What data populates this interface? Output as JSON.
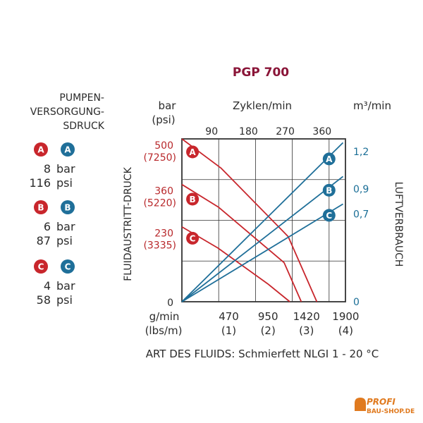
{
  "title": "PGP 700",
  "left_panel": {
    "heading": [
      "PUMPEN-",
      "VERSORGUNG-",
      "SDRUCK"
    ],
    "groups": [
      {
        "letter": "A",
        "bar": "8",
        "psi": "116"
      },
      {
        "letter": "B",
        "bar": "6",
        "psi": "87"
      },
      {
        "letter": "C",
        "bar": "4",
        "psi": "58"
      }
    ],
    "unit_bar": "bar",
    "unit_psi": "psi"
  },
  "logo": {
    "line1": "PROFI",
    "line2": "BAU-SHOP.DE"
  },
  "colors": {
    "red": "#c8262c",
    "blue": "#1f6f99",
    "title": "#8a1538",
    "grid": "#333333",
    "text": "#2b2b2b"
  },
  "chart_data": {
    "type": "line",
    "title": "PGP 700",
    "footer_label": "ART DES FLUIDS: Schmierfett NLGI 1 - 20 °C",
    "left_axis": {
      "label": "FLUIDAUSTRITT-DRUCK",
      "unit_lines": [
        "bar",
        "(psi)"
      ],
      "range": [
        0,
        500
      ],
      "ticks": [
        {
          "value": 500,
          "bar": "500",
          "psi": "(7250)"
        },
        {
          "value": 360,
          "bar": "360",
          "psi": "(5220)"
        },
        {
          "value": 230,
          "bar": "230",
          "psi": "(3335)"
        },
        {
          "value": 0,
          "bar": "0",
          "psi": ""
        }
      ]
    },
    "right_axis": {
      "label": "LUFTVERBRAUCH",
      "unit": "m³/min",
      "range": [
        0,
        1.3
      ],
      "ticks": [
        {
          "value": 1.2,
          "label": "1,2"
        },
        {
          "value": 0.9,
          "label": "0,9"
        },
        {
          "value": 0.7,
          "label": "0,7"
        },
        {
          "value": 0,
          "label": "0"
        }
      ]
    },
    "top_axis": {
      "label": "Zyklen/min",
      "range": [
        0,
        400
      ],
      "ticks": [
        "90",
        "180",
        "270",
        "360"
      ],
      "tick_values": [
        90,
        180,
        270,
        360
      ]
    },
    "bottom_axis": {
      "unit_lines": [
        "g/min",
        "(lbs/m)"
      ],
      "range": [
        0,
        2000
      ],
      "ticks": [
        {
          "value": 470,
          "label": "470",
          "sub": "(1)"
        },
        {
          "value": 950,
          "label": "950",
          "sub": "(2)"
        },
        {
          "value": 1420,
          "label": "1420",
          "sub": "(3)"
        },
        {
          "value": 1900,
          "label": "1900",
          "sub": "(4)"
        }
      ]
    },
    "pressure_series": [
      {
        "name": "A",
        "axis": "left",
        "x": [
          0,
          480,
          1300,
          1650
        ],
        "y": [
          500,
          410,
          200,
          0
        ],
        "label_at": [
          130,
          460
        ]
      },
      {
        "name": "B",
        "axis": "left",
        "x": [
          0,
          450,
          1250,
          1460
        ],
        "y": [
          360,
          290,
          120,
          0
        ],
        "label_at": [
          130,
          315
        ]
      },
      {
        "name": "C",
        "axis": "left",
        "x": [
          0,
          440,
          1050,
          1320
        ],
        "y": [
          230,
          165,
          55,
          0
        ],
        "label_at": [
          130,
          195
        ]
      }
    ],
    "air_series": [
      {
        "name": "A",
        "axis": "right",
        "x": [
          0,
          1970
        ],
        "y": [
          0,
          1.27
        ],
        "label_at": [
          1800,
          1.14
        ]
      },
      {
        "name": "B",
        "axis": "right",
        "x": [
          0,
          1970
        ],
        "y": [
          0,
          1.0
        ],
        "label_at": [
          1800,
          0.89
        ]
      },
      {
        "name": "C",
        "axis": "right",
        "x": [
          0,
          1970
        ],
        "y": [
          0,
          0.78
        ],
        "label_at": [
          1800,
          0.69
        ]
      }
    ],
    "grid": true
  }
}
